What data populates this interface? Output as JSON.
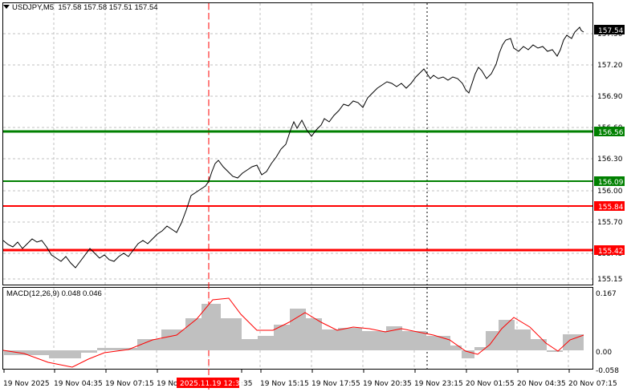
{
  "header": {
    "symbol_label": "USDJPY,M5",
    "ohlc": "157.58 157.58 157.51 157.54"
  },
  "price_axis": {
    "ticks": [
      "157.50",
      "157.20",
      "156.90",
      "156.60",
      "156.30",
      "156.00",
      "155.70",
      "155.45",
      "155.15"
    ],
    "current_price": "157.54"
  },
  "levels": [
    {
      "value": "156.56",
      "color": "#008000"
    },
    {
      "value": "156.09",
      "color": "#008000"
    },
    {
      "value": "155.84",
      "color": "#ff0000"
    },
    {
      "value": "155.42",
      "color": "#ff0000"
    }
  ],
  "macd": {
    "label": "MACD(12,26,9) 0.048 0.046",
    "ticks": [
      "0.167",
      "0.00",
      "-0.058"
    ]
  },
  "time_axis": {
    "labels": [
      "19 Nov 2025",
      "19 Nov 04:35",
      "19 Nov 07:15",
      "19 No",
      "2025.11.19 12:35",
      ":35",
      "19 Nov 15:15",
      "19 Nov 17:55",
      "19 Nov 20:35",
      "19 Nov 23:15",
      "20 Nov 01:55",
      "20 Nov 04:35",
      "20 Nov 07:15"
    ],
    "crosshair_label": "2025.11.19 12:35"
  },
  "colors": {
    "price_line": "#000000",
    "grid": "#c0c0c0",
    "crosshair": "#ff0000",
    "histogram": "#c0c0c0",
    "signal_line": "#ff0000"
  }
}
